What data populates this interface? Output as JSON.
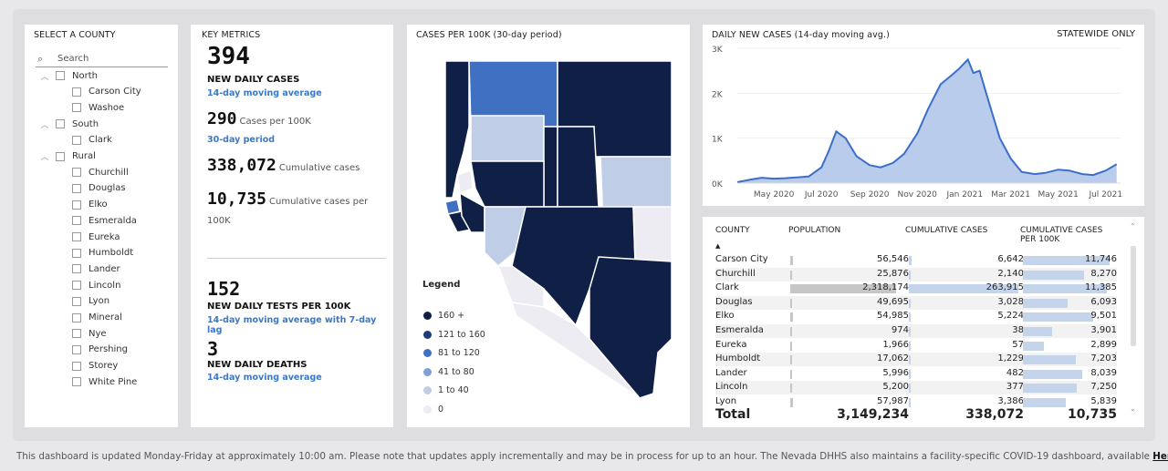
{
  "slicer": {
    "title": "SELECT A COUNTY",
    "search_placeholder": "Search",
    "tree": [
      {
        "label": "North",
        "level": 0
      },
      {
        "label": "Carson City",
        "level": 1
      },
      {
        "label": "Washoe",
        "level": 1
      },
      {
        "label": "South",
        "level": 0
      },
      {
        "label": "Clark",
        "level": 1
      },
      {
        "label": "Rural",
        "level": 0
      },
      {
        "label": "Churchill",
        "level": 1
      },
      {
        "label": "Douglas",
        "level": 1
      },
      {
        "label": "Elko",
        "level": 1
      },
      {
        "label": "Esmeralda",
        "level": 1
      },
      {
        "label": "Eureka",
        "level": 1
      },
      {
        "label": "Humboldt",
        "level": 1
      },
      {
        "label": "Lander",
        "level": 1
      },
      {
        "label": "Lincoln",
        "level": 1
      },
      {
        "label": "Lyon",
        "level": 1
      },
      {
        "label": "Mineral",
        "level": 1
      },
      {
        "label": "Nye",
        "level": 1
      },
      {
        "label": "Pershing",
        "level": 1
      },
      {
        "label": "Storey",
        "level": 1
      },
      {
        "label": "White Pine",
        "level": 1
      }
    ]
  },
  "metrics": {
    "title": "KEY METRICS",
    "daily_cases": "394",
    "daily_cases_label": "NEW DAILY CASES",
    "daily_cases_sub": "14-day moving average",
    "per100k": "290",
    "per100k_label": "Cases per 100K",
    "per100k_sub": "30-day period",
    "cumulative": "338,072",
    "cumulative_label": "Cumulative cases",
    "cum_per100k": "10,735",
    "cum_per100k_label": "Cumulative cases per 100K",
    "tests": "152",
    "tests_label": "NEW DAILY TESTS PER 100K",
    "tests_sub": "14-day moving average with 7-day lag",
    "deaths": "3",
    "deaths_label": "NEW DAILY DEATHS",
    "deaths_sub": "14-day moving average"
  },
  "map": {
    "title": "CASES PER 100K (30-day period)",
    "legend_title": "Legend",
    "legend": [
      {
        "label": "160 +",
        "color": "#0f1f45"
      },
      {
        "label": "121 to 160",
        "color": "#1e3d7a"
      },
      {
        "label": "81 to 120",
        "color": "#3f70c2"
      },
      {
        "label": "41 to 80",
        "color": "#7f9fd6"
      },
      {
        "label": "1 to 40",
        "color": "#bfcde6"
      },
      {
        "label": "0",
        "color": "#ececf2"
      }
    ]
  },
  "chart_data": {
    "type": "area",
    "title": "DAILY NEW CASES (14-day moving avg.)",
    "note": "STATEWIDE ONLY",
    "y_ticks": [
      "0K",
      "1K",
      "2K",
      "3K"
    ],
    "ylim": [
      0,
      3000
    ],
    "x_ticks": [
      "May 2020",
      "Jul 2020",
      "Sep 2020",
      "Nov 2020",
      "Jan 2021",
      "Mar 2021",
      "May 2021",
      "Jul 2021"
    ],
    "x": [
      "2020-03-15",
      "2020-04-01",
      "2020-04-15",
      "2020-05-01",
      "2020-05-15",
      "2020-06-01",
      "2020-06-15",
      "2020-07-01",
      "2020-07-10",
      "2020-07-20",
      "2020-08-01",
      "2020-08-15",
      "2020-09-01",
      "2020-09-15",
      "2020-10-01",
      "2020-10-15",
      "2020-11-01",
      "2020-11-15",
      "2020-12-01",
      "2020-12-15",
      "2020-12-25",
      "2021-01-05",
      "2021-01-12",
      "2021-01-20",
      "2021-02-01",
      "2021-02-15",
      "2021-03-01",
      "2021-03-15",
      "2021-04-01",
      "2021-04-15",
      "2021-05-01",
      "2021-05-15",
      "2021-06-01",
      "2021-06-15",
      "2021-07-01",
      "2021-07-15"
    ],
    "values": [
      20,
      80,
      120,
      100,
      110,
      130,
      150,
      350,
      700,
      1150,
      1000,
      600,
      400,
      350,
      450,
      650,
      1100,
      1650,
      2200,
      2400,
      2550,
      2750,
      2450,
      2500,
      1800,
      1000,
      550,
      250,
      200,
      230,
      300,
      280,
      200,
      180,
      280,
      420
    ],
    "color": "#3a6fc9",
    "fill": "#aec3e8"
  },
  "table": {
    "headers": [
      "COUNTY",
      "POPULATION",
      "CUMULATIVE CASES",
      "CUMULATIVE CASES PER 100K"
    ],
    "sort_indicator": "▲",
    "rows": [
      {
        "county": "Carson City",
        "pop": "56,546",
        "cases": "6,642",
        "per": "11,746",
        "pop_v": 56546,
        "cases_v": 6642,
        "per_v": 11746
      },
      {
        "county": "Churchill",
        "pop": "25,876",
        "cases": "2,140",
        "per": "8,270",
        "pop_v": 25876,
        "cases_v": 2140,
        "per_v": 8270
      },
      {
        "county": "Clark",
        "pop": "2,318,174",
        "cases": "263,915",
        "per": "11,385",
        "pop_v": 2318174,
        "cases_v": 263915,
        "per_v": 11385
      },
      {
        "county": "Douglas",
        "pop": "49,695",
        "cases": "3,028",
        "per": "6,093",
        "pop_v": 49695,
        "cases_v": 3028,
        "per_v": 6093
      },
      {
        "county": "Elko",
        "pop": "54,985",
        "cases": "5,224",
        "per": "9,501",
        "pop_v": 54985,
        "cases_v": 5224,
        "per_v": 9501
      },
      {
        "county": "Esmeralda",
        "pop": "974",
        "cases": "38",
        "per": "3,901",
        "pop_v": 974,
        "cases_v": 38,
        "per_v": 3901
      },
      {
        "county": "Eureka",
        "pop": "1,966",
        "cases": "57",
        "per": "2,899",
        "pop_v": 1966,
        "cases_v": 57,
        "per_v": 2899
      },
      {
        "county": "Humboldt",
        "pop": "17,062",
        "cases": "1,229",
        "per": "7,203",
        "pop_v": 17062,
        "cases_v": 1229,
        "per_v": 7203
      },
      {
        "county": "Lander",
        "pop": "5,996",
        "cases": "482",
        "per": "8,039",
        "pop_v": 5996,
        "cases_v": 482,
        "per_v": 8039
      },
      {
        "county": "Lincoln",
        "pop": "5,200",
        "cases": "377",
        "per": "7,250",
        "pop_v": 5200,
        "cases_v": 377,
        "per_v": 7250
      },
      {
        "county": "Lyon",
        "pop": "57,987",
        "cases": "3,386",
        "per": "5,839",
        "pop_v": 57987,
        "cases_v": 3386,
        "per_v": 5839
      }
    ],
    "total": {
      "label": "Total",
      "pop": "3,149,234",
      "cases": "338,072",
      "per": "10,735"
    }
  },
  "footer": {
    "text": "This dashboard is updated Monday-Friday at approximately 10:00 am. Please note that updates apply incrementally and may be in process for up to an hour.  The Nevada DHHS also maintains a facility-specific COVID-19 dashboard, available ",
    "link": "Here"
  }
}
